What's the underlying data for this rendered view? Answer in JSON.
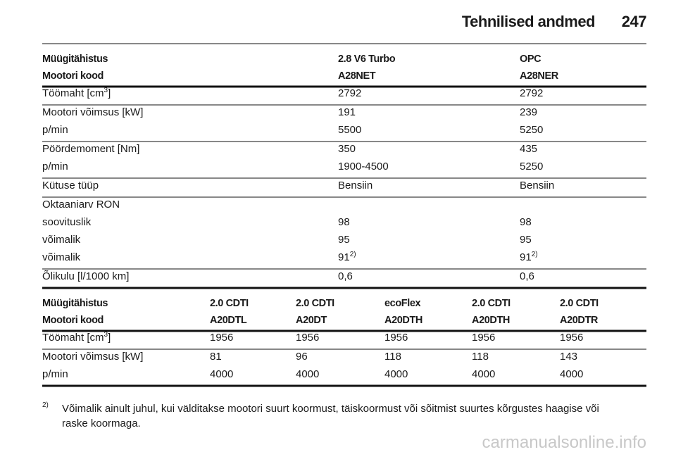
{
  "header": {
    "title": "Tehnilised andmed",
    "page": "247"
  },
  "tables": [
    {
      "columns": [
        [
          "Müügitähistus",
          "Mootori kood"
        ],
        [
          "2.8 V6 Turbo",
          "A28NET"
        ],
        [
          "OPC",
          "A28NER"
        ]
      ],
      "groups": [
        [
          [
            {
              "text": "Töömaht [cm",
              "sup": "3",
              "tail": "]"
            },
            "2792",
            "2792"
          ]
        ],
        [
          [
            "Mootori võimsus [kW]",
            "191",
            "239"
          ],
          [
            "p/min",
            "5500",
            "5250"
          ]
        ],
        [
          [
            "Pöördemoment [Nm]",
            "350",
            "435"
          ],
          [
            "p/min",
            "1900-4500",
            "5250"
          ]
        ],
        [
          [
            "Kütuse tüüp",
            "Bensiin",
            "Bensiin"
          ]
        ],
        [
          [
            "Oktaaniarv RON"
          ],
          [
            "soovituslik",
            "98",
            "98"
          ],
          [
            "võimalik",
            "95",
            "95"
          ],
          [
            "võimalik",
            {
              "text": "91",
              "sup": "2)"
            },
            {
              "text": "91",
              "sup": "2)"
            }
          ]
        ],
        [
          [
            "Õlikulu [l/1000 km]",
            "0,6",
            "0,6"
          ]
        ]
      ]
    },
    {
      "columns": [
        [
          "Müügitähistus",
          "Mootori kood"
        ],
        [
          "2.0 CDTI",
          "A20DTL"
        ],
        [
          "2.0 CDTI",
          "A20DT"
        ],
        [
          "ecoFlex",
          "A20DTH"
        ],
        [
          "2.0 CDTI",
          "A20DTH"
        ],
        [
          "2.0 CDTI",
          "A20DTR"
        ]
      ],
      "groups": [
        [
          [
            {
              "text": "Töömaht [cm",
              "sup": "3",
              "tail": "]"
            },
            "1956",
            "1956",
            "1956",
            "1956",
            "1956"
          ]
        ],
        [
          [
            "Mootori võimsus [kW]",
            "81",
            "96",
            "118",
            "118",
            "143"
          ],
          [
            "p/min",
            "4000",
            "4000",
            "4000",
            "4000",
            "4000"
          ]
        ]
      ]
    }
  ],
  "footnote": {
    "mark": "2)",
    "lines": [
      "Võimalik ainult juhul, kui välditakse mootori suurt koormust, täiskoormust või sõitmist suurtes kõrgustes haagise või",
      "raske koormaga."
    ]
  },
  "watermark": "carmanualsonline.info"
}
